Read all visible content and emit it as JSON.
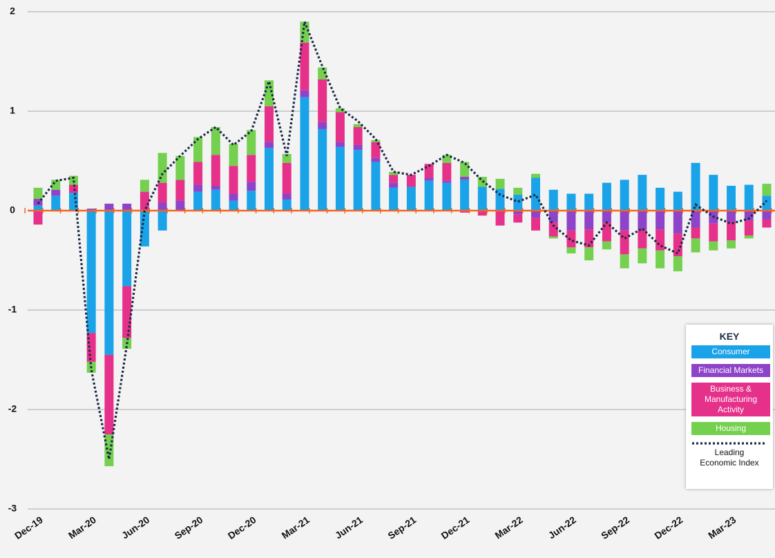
{
  "chart_data": {
    "type": "bar",
    "stacked": true,
    "categories": [
      "Dec-19",
      null,
      null,
      "Mar-20",
      null,
      null,
      "Jun-20",
      null,
      null,
      "Sep-20",
      null,
      null,
      "Dec-20",
      null,
      null,
      "Mar-21",
      null,
      null,
      "Jun-21",
      null,
      null,
      "Sep-21",
      null,
      null,
      "Dec-21",
      null,
      null,
      "Mar-22",
      null,
      null,
      "Jun-22",
      null,
      null,
      "Sep-22",
      null,
      null,
      "Dec-22",
      null,
      null,
      "Mar-23",
      null,
      null
    ],
    "series": [
      {
        "name": "Consumer",
        "color": "#1aa3e8",
        "values": [
          0.05,
          0.15,
          0.18,
          -1.23,
          -1.45,
          -0.76,
          -0.36,
          -0.2,
          0,
          0.19,
          0.21,
          0.1,
          0.2,
          0.63,
          0.11,
          1.14,
          0.82,
          0.64,
          0.61,
          0.49,
          0.23,
          0.24,
          0.3,
          0.28,
          0.31,
          0.24,
          0.22,
          0.16,
          0.33,
          0.21,
          0.17,
          0.17,
          0.28,
          0.31,
          0.36,
          0.23,
          0.19,
          0.48,
          0.36,
          0.25,
          0.26,
          0.15
        ]
      },
      {
        "name": "Financial Markets",
        "color": "#8e44c8",
        "values": [
          0.07,
          0.06,
          0,
          0.02,
          0.07,
          0.07,
          0,
          0.08,
          0.1,
          0.07,
          0.04,
          0.07,
          0.09,
          0.06,
          0.06,
          0.07,
          0.07,
          0.05,
          0.05,
          0.04,
          0.05,
          0,
          0.03,
          0.02,
          0.03,
          0,
          0,
          -0.04,
          -0.07,
          -0.12,
          -0.2,
          -0.19,
          -0.12,
          -0.2,
          -0.19,
          -0.19,
          -0.23,
          -0.17,
          -0.13,
          -0.11,
          -0.1,
          -0.09
        ]
      },
      {
        "name": "Business & Manufacturing Activity",
        "color": "#e6318a",
        "values": [
          -0.14,
          0,
          0.08,
          -0.29,
          -0.8,
          -0.52,
          0.19,
          0.2,
          0.21,
          0.23,
          0.31,
          0.28,
          0.27,
          0.36,
          0.31,
          0.48,
          0.43,
          0.3,
          0.18,
          0.16,
          0.08,
          0.12,
          0.14,
          0.18,
          -0.02,
          -0.05,
          -0.15,
          -0.08,
          -0.13,
          -0.14,
          -0.17,
          -0.18,
          -0.19,
          -0.24,
          -0.19,
          -0.21,
          -0.23,
          -0.11,
          -0.18,
          -0.19,
          -0.15,
          -0.08
        ]
      },
      {
        "name": "Housing",
        "color": "#74d04e",
        "values": [
          0.11,
          0.1,
          0.09,
          -0.11,
          -0.32,
          -0.11,
          0.12,
          0.3,
          0.24,
          0.25,
          0.28,
          0.22,
          0.25,
          0.26,
          0.09,
          0.21,
          0.12,
          0.04,
          0.03,
          0.02,
          0.03,
          0,
          0,
          0.08,
          0.15,
          0.1,
          0.1,
          0.07,
          0.04,
          -0.02,
          -0.06,
          -0.13,
          -0.08,
          -0.14,
          -0.15,
          -0.18,
          -0.15,
          -0.14,
          -0.09,
          -0.08,
          -0.03,
          0.12
        ]
      },
      {
        "name": "Leading Economic Index",
        "type": "line",
        "color": "#1b2a47",
        "values": [
          0.07,
          0.3,
          0.33,
          -1.6,
          -2.5,
          -1.35,
          0,
          0.37,
          0.55,
          0.72,
          0.84,
          0.66,
          0.8,
          1.3,
          0.55,
          1.9,
          1.45,
          1.03,
          0.9,
          0.72,
          0.39,
          0.36,
          0.45,
          0.56,
          0.48,
          0.3,
          0.16,
          0.09,
          0.16,
          -0.15,
          -0.3,
          -0.35,
          -0.12,
          -0.28,
          -0.18,
          -0.35,
          -0.43,
          0.06,
          -0.06,
          -0.13,
          -0.08,
          0.1
        ]
      }
    ],
    "ylim": [
      -3,
      2
    ],
    "yticks": [
      -3,
      -2,
      -1,
      0,
      1,
      2
    ],
    "grid": true,
    "zero_line_color": "#f26522",
    "legend": {
      "title": "KEY",
      "position": "lower right"
    }
  }
}
